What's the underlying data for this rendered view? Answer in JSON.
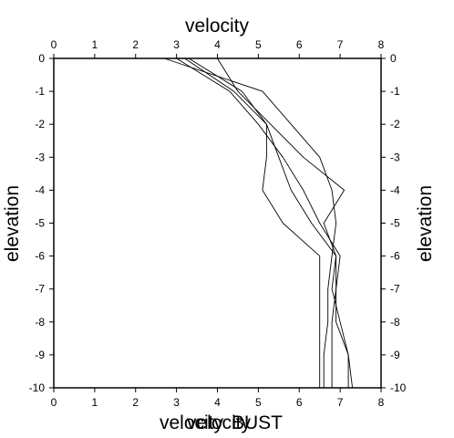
{
  "chart_data": {
    "type": "line",
    "title": "",
    "xlabel_top": "velocity",
    "ylabel_left": "elevation",
    "ylabel_right": "elevation",
    "bottom_texts": [
      "velocity",
      "velocity",
      "BUST"
    ],
    "xlim": [
      0,
      8
    ],
    "ylim": [
      -10,
      0
    ],
    "xticks": [
      0,
      1,
      2,
      3,
      4,
      5,
      6,
      7,
      8
    ],
    "yticks": [
      0,
      -1,
      -2,
      -3,
      -4,
      -5,
      -6,
      -7,
      -8,
      -9,
      -10
    ],
    "grid": false,
    "legend": "none",
    "line_color": "#000000",
    "series": [
      {
        "x": [
          2.7,
          5.1,
          5.8,
          6.5,
          6.8,
          6.9,
          6.8,
          6.7,
          6.7,
          6.6,
          6.6
        ],
        "y": [
          0,
          -1,
          -2,
          -3,
          -4,
          -5,
          -6,
          -7,
          -8,
          -9,
          -10
        ]
      },
      {
        "x": [
          3.0,
          4.3,
          5.0,
          5.6,
          6.1,
          6.5,
          7.0,
          6.9,
          6.8,
          6.8,
          6.8
        ],
        "y": [
          0,
          -1,
          -2,
          -3,
          -4,
          -5,
          -6,
          -7,
          -8,
          -9,
          -10
        ]
      },
      {
        "x": [
          3.2,
          4.4,
          5.2,
          5.5,
          5.8,
          6.3,
          6.9,
          6.9,
          6.9,
          7.2,
          7.3
        ],
        "y": [
          0,
          -1,
          -2,
          -3,
          -4,
          -5,
          -6,
          -7,
          -8,
          -9,
          -10
        ]
      },
      {
        "x": [
          3.3,
          4.6,
          5.2,
          5.2,
          5.1,
          5.6,
          6.5,
          6.5,
          6.5,
          6.5,
          6.5
        ],
        "y": [
          0,
          -1,
          -2,
          -3,
          -4,
          -5,
          -6,
          -7,
          -8,
          -9,
          -10
        ]
      },
      {
        "x": [
          4.0,
          4.5,
          5.3,
          6.1,
          7.1,
          6.6,
          6.9,
          6.8,
          7.0,
          7.2,
          7.2
        ],
        "y": [
          0,
          -1,
          -2,
          -3,
          -4,
          -5,
          -6,
          -7,
          -8,
          -9,
          -10
        ]
      }
    ]
  }
}
